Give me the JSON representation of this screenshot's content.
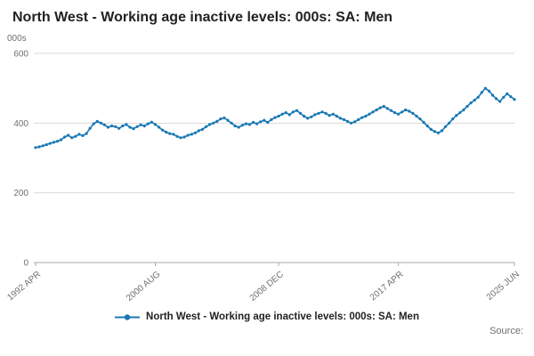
{
  "chart_data": {
    "type": "line",
    "title": "North West - Working age inactive levels: 000s: SA: Men",
    "legend": "North West - Working age inactive levels: 000s: SA: Men",
    "ylabel": "000s",
    "xlabel": "",
    "ylim": [
      0,
      600
    ],
    "y_ticks": [
      0,
      200,
      400,
      600
    ],
    "x_ticks": [
      "1992 APR",
      "2000 AUG",
      "2008 DEC",
      "2017 APR",
      "2025 JUN"
    ],
    "x_tick_indices": [
      0,
      33,
      67,
      100,
      132
    ],
    "line_color": "#1878b4",
    "grid": true,
    "legend_position": "bottom",
    "values": [
      330,
      332,
      335,
      338,
      342,
      345,
      348,
      352,
      360,
      365,
      358,
      362,
      368,
      364,
      370,
      385,
      398,
      405,
      400,
      395,
      388,
      392,
      390,
      385,
      392,
      396,
      388,
      384,
      390,
      395,
      392,
      398,
      403,
      396,
      388,
      380,
      374,
      370,
      368,
      362,
      358,
      360,
      365,
      368,
      372,
      378,
      382,
      390,
      396,
      400,
      405,
      412,
      415,
      408,
      400,
      392,
      388,
      394,
      398,
      396,
      402,
      398,
      404,
      408,
      402,
      410,
      416,
      420,
      426,
      430,
      424,
      432,
      436,
      428,
      420,
      414,
      418,
      424,
      428,
      432,
      428,
      422,
      426,
      420,
      414,
      410,
      405,
      400,
      404,
      410,
      416,
      420,
      426,
      432,
      438,
      444,
      448,
      442,
      436,
      430,
      426,
      432,
      438,
      434,
      428,
      420,
      412,
      402,
      392,
      382,
      376,
      372,
      378,
      390,
      400,
      412,
      422,
      430,
      438,
      448,
      458,
      466,
      474,
      488,
      500,
      492,
      480,
      470,
      462,
      474,
      484,
      476,
      468
    ]
  },
  "footer": {
    "source": "Source:"
  }
}
